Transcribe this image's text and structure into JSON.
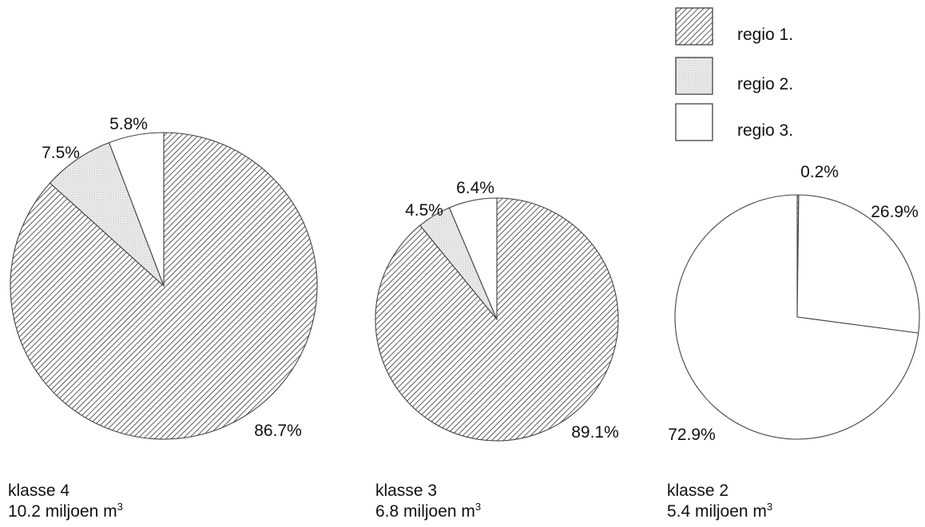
{
  "chart_data": [
    {
      "type": "pie",
      "title": "klasse 4",
      "total_value": "10.2",
      "total_unit": "miljoen m",
      "total_exp": "3",
      "slices": [
        {
          "series": "regio 1.",
          "value": 86.7,
          "label": "86.7%"
        },
        {
          "series": "regio 2.",
          "value": 7.5,
          "label": "7.5%"
        },
        {
          "series": "regio 3.",
          "value": 5.8,
          "label": "5.8%"
        }
      ]
    },
    {
      "type": "pie",
      "title": "klasse 3",
      "total_value": "6.8",
      "total_unit": "miljoen m",
      "total_exp": "3",
      "slices": [
        {
          "series": "regio 1.",
          "value": 89.1,
          "label": "89.1%"
        },
        {
          "series": "regio 2.",
          "value": 4.5,
          "label": "4.5%"
        },
        {
          "series": "regio 3.",
          "value": 6.4,
          "label": "6.4%"
        }
      ]
    },
    {
      "type": "pie",
      "title": "klasse 2",
      "total_value": "5.4",
      "total_unit": "miljoen m",
      "total_exp": "3",
      "slices": [
        {
          "series": "regio 1.",
          "value": 0.2,
          "label": "0.2%"
        },
        {
          "series": "regio 3.",
          "value": 26.9,
          "label": "26.9%"
        },
        {
          "series": "regio 3.",
          "value": 72.9,
          "label": "72.9%"
        }
      ]
    }
  ],
  "legend": {
    "placement": "top-right",
    "items": [
      {
        "label": "regio 1.",
        "fill": "hatch"
      },
      {
        "label": "regio 2.",
        "fill": "dots"
      },
      {
        "label": "regio 3.",
        "fill": "white"
      }
    ]
  }
}
